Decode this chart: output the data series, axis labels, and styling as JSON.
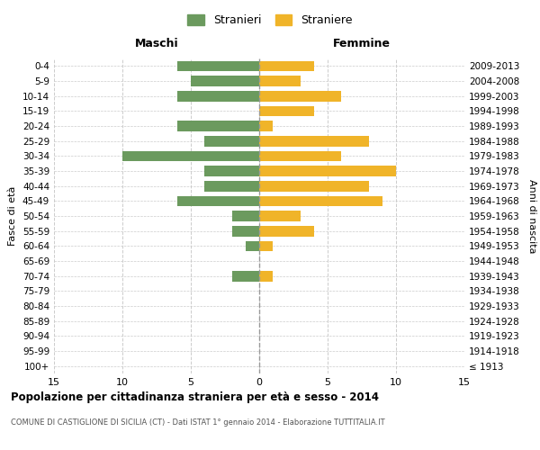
{
  "age_groups": [
    "100+",
    "95-99",
    "90-94",
    "85-89",
    "80-84",
    "75-79",
    "70-74",
    "65-69",
    "60-64",
    "55-59",
    "50-54",
    "45-49",
    "40-44",
    "35-39",
    "30-34",
    "25-29",
    "20-24",
    "15-19",
    "10-14",
    "5-9",
    "0-4"
  ],
  "birth_years": [
    "≤ 1913",
    "1914-1918",
    "1919-1923",
    "1924-1928",
    "1929-1933",
    "1934-1938",
    "1939-1943",
    "1944-1948",
    "1949-1953",
    "1954-1958",
    "1959-1963",
    "1964-1968",
    "1969-1973",
    "1974-1978",
    "1979-1983",
    "1984-1988",
    "1989-1993",
    "1994-1998",
    "1999-2003",
    "2004-2008",
    "2009-2013"
  ],
  "maschi": [
    0,
    0,
    0,
    0,
    0,
    0,
    2,
    0,
    1,
    2,
    2,
    6,
    4,
    4,
    10,
    4,
    6,
    0,
    6,
    5,
    6
  ],
  "femmine": [
    0,
    0,
    0,
    0,
    0,
    0,
    1,
    0,
    1,
    4,
    3,
    9,
    8,
    10,
    6,
    8,
    1,
    4,
    6,
    3,
    4
  ],
  "color_maschi": "#6b9a5e",
  "color_femmine": "#f0b429",
  "xlim": 15,
  "title": "Popolazione per cittadinanza straniera per età e sesso - 2014",
  "subtitle": "COMUNE DI CASTIGLIONE DI SICILIA (CT) - Dati ISTAT 1° gennaio 2014 - Elaborazione TUTTITALIA.IT",
  "label_maschi": "Maschi",
  "label_femmine": "Femmine",
  "legend_stranieri": "Stranieri",
  "legend_straniere": "Straniere",
  "ylabel_left": "Fasce di età",
  "ylabel_right": "Anni di nascita",
  "xticks": [
    -15,
    -10,
    -5,
    0,
    5,
    10,
    15
  ],
  "xtick_labels": [
    "15",
    "10",
    "5",
    "0",
    "5",
    "10",
    "15"
  ],
  "background_color": "#ffffff",
  "grid_color": "#cccccc"
}
